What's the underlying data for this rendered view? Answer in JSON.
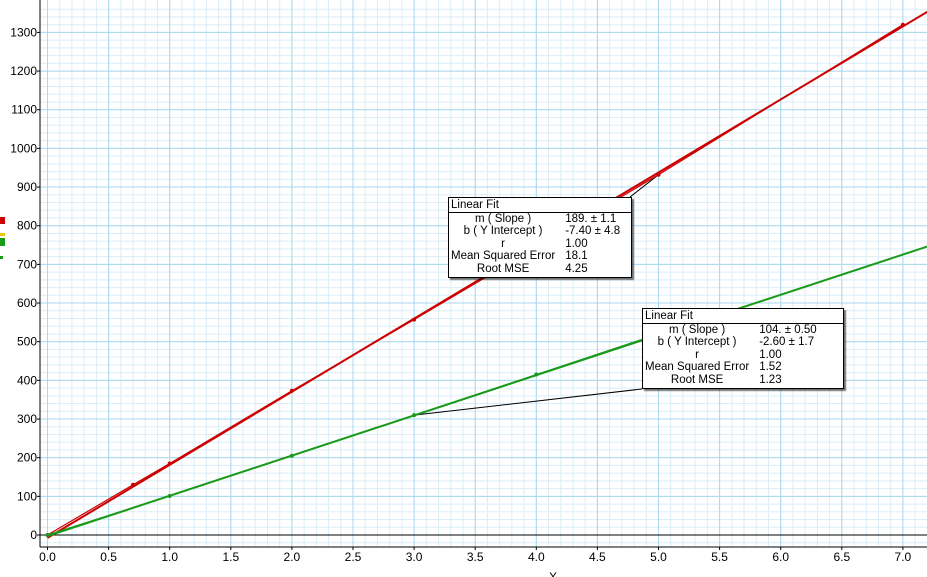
{
  "chart_data": {
    "type": "scatter",
    "title": "",
    "xlabel": "X",
    "ylabel": "",
    "xlim": [
      -0.05,
      7.22
    ],
    "ylim": [
      -35,
      1370
    ],
    "x_ticks": [
      "0.0",
      "0.5",
      "1.0",
      "1.5",
      "2.0",
      "2.5",
      "3.0",
      "3.5",
      "4.0",
      "4.5",
      "5.0",
      "5.5",
      "6.0",
      "6.5",
      "7.0"
    ],
    "y_ticks": [
      "0",
      "100",
      "200",
      "300",
      "400",
      "500",
      "600",
      "700",
      "800",
      "900",
      "1000",
      "1100",
      "1200",
      "1300"
    ],
    "grid": true,
    "series": [
      {
        "color": "#cc0000",
        "x": [
          0,
          0.7,
          1,
          2,
          3,
          5,
          7
        ],
        "y": [
          0,
          130,
          185,
          373,
          557,
          932,
          1320
        ],
        "fit": {
          "slope": 189.0,
          "intercept": -7.4
        }
      },
      {
        "color": "#1a9a1a",
        "x": [
          0,
          1,
          2,
          3,
          4,
          5
        ],
        "y": [
          0,
          101,
          205,
          310,
          415,
          520
        ],
        "fit": {
          "slope": 104.0,
          "intercept": -2.6
        }
      }
    ],
    "annotations": [
      {
        "title": "Linear Fit",
        "series": 0,
        "rows": [
          {
            "label": "m ( Slope )",
            "value": "189. ± 1.1"
          },
          {
            "label": "b ( Y Intercept )",
            "value": "-7.40 ± 4.8"
          },
          {
            "label": "r",
            "value": "1.00"
          },
          {
            "label": "Mean Squared Error",
            "value": "18.1"
          },
          {
            "label": "Root MSE",
            "value": "4.25"
          }
        ],
        "points_to": [
          5,
          932
        ]
      },
      {
        "title": "Linear Fit",
        "series": 1,
        "rows": [
          {
            "label": "m ( Slope )",
            "value": "104. ± 0.50"
          },
          {
            "label": "b ( Y Intercept )",
            "value": "-2.60 ±  1.7"
          },
          {
            "label": "r",
            "value": "1.00"
          },
          {
            "label": "Mean Squared Error",
            "value": "1.52"
          },
          {
            "label": "Root MSE",
            "value": "1.23"
          }
        ],
        "points_to": [
          3,
          310
        ]
      }
    ]
  }
}
